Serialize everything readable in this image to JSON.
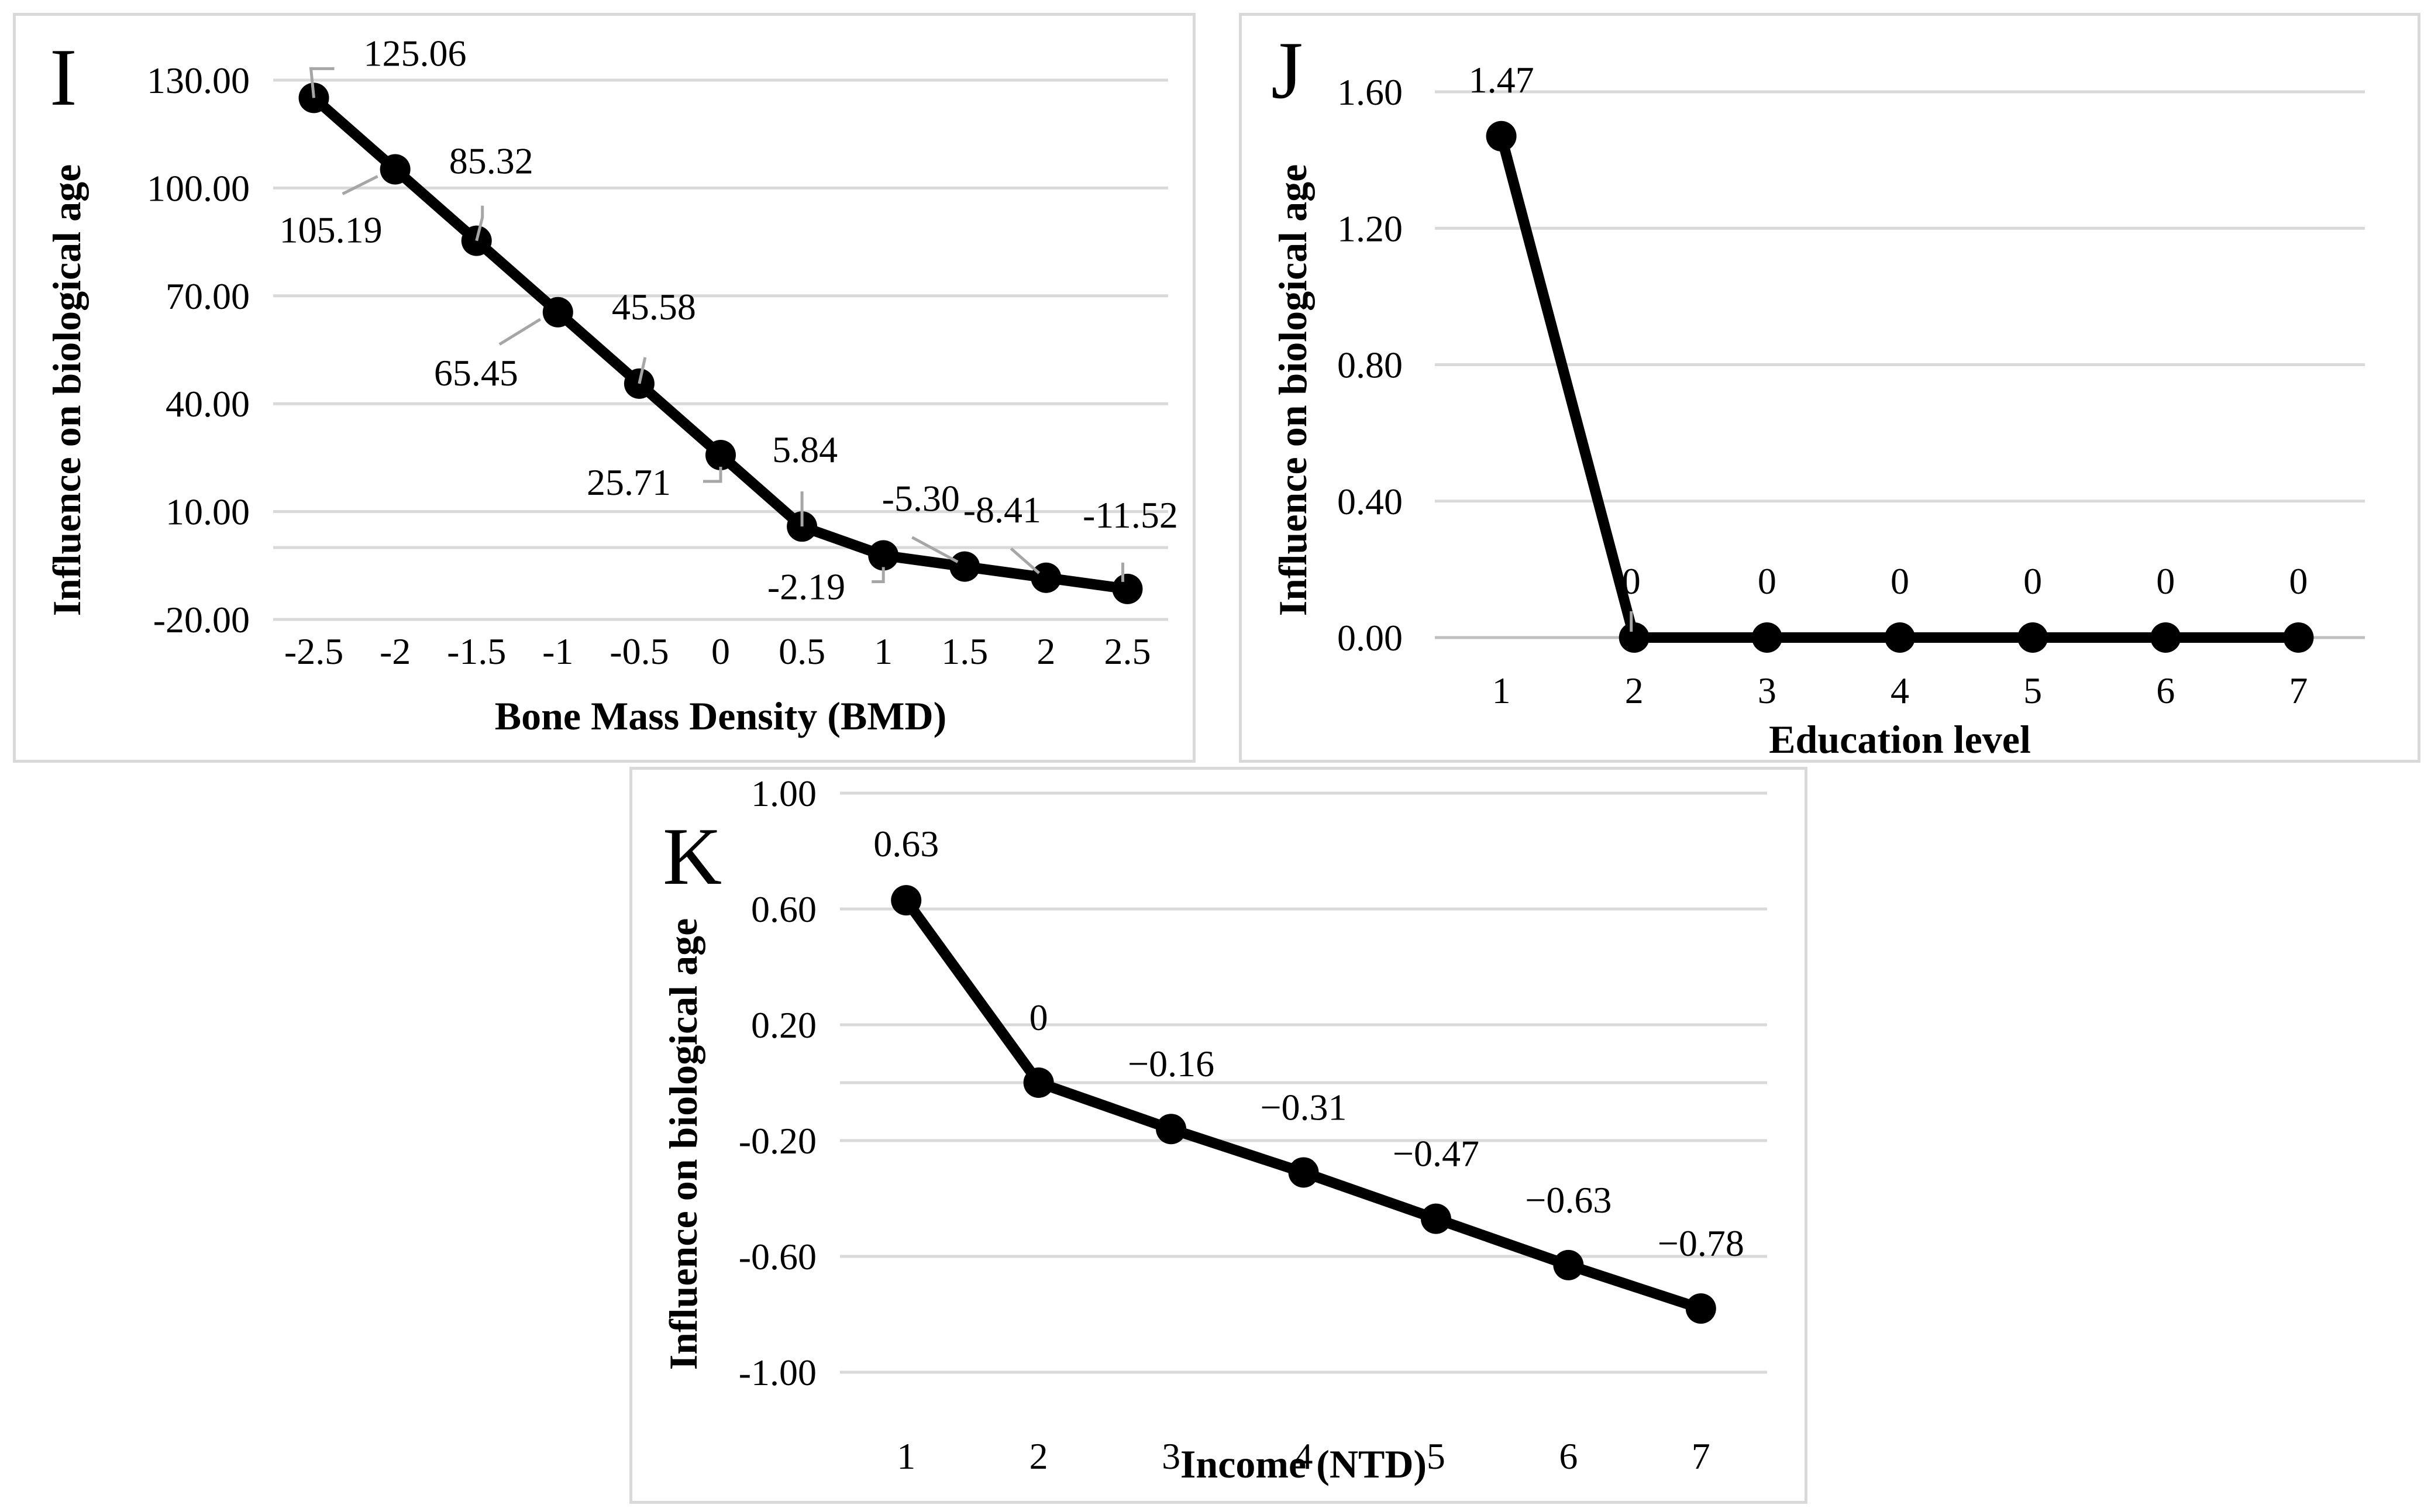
{
  "chart_data": [
    {
      "panel": "I",
      "type": "line",
      "xlabel": "Bone Mass Density (BMD)",
      "ylabel": "Influence on biological age",
      "categories": [
        "-2.5",
        "-2",
        "-1.5",
        "-1",
        "-0.5",
        "0",
        "0.5",
        "1",
        "1.5",
        "2",
        "2.5"
      ],
      "values": [
        125.06,
        105.19,
        85.32,
        65.45,
        45.58,
        25.71,
        5.84,
        -2.19,
        -5.3,
        -8.41,
        -11.52
      ],
      "data_labels": [
        "125.06",
        "105.19",
        "85.32",
        "65.45",
        "45.58",
        "25.71",
        "5.84",
        "-2.19",
        "-5.30",
        "-8.41",
        "-11.52"
      ],
      "yticks": [
        -20,
        10,
        40,
        70,
        100,
        130
      ],
      "ytick_labels": [
        "-20.00",
        "10.00",
        "40.00",
        "70.00",
        "100.00",
        "130.00"
      ],
      "ylim": [
        -20,
        130
      ],
      "grid": true
    },
    {
      "panel": "J",
      "type": "line",
      "xlabel": "Education level",
      "ylabel": "Influence on biological age",
      "categories": [
        "1",
        "2",
        "3",
        "4",
        "5",
        "6",
        "7"
      ],
      "values": [
        1.47,
        0,
        0,
        0,
        0,
        0,
        0
      ],
      "data_labels": [
        "1.47",
        "0",
        "0",
        "0",
        "0",
        "0",
        "0"
      ],
      "yticks": [
        0,
        0.4,
        0.8,
        1.2,
        1.6
      ],
      "ytick_labels": [
        "0.00",
        "0.40",
        "0.80",
        "1.20",
        "1.60"
      ],
      "ylim": [
        0,
        1.6
      ],
      "grid": true
    },
    {
      "panel": "K",
      "type": "line",
      "xlabel": "Income (NTD)",
      "ylabel": "Influence on biological age",
      "categories": [
        "1",
        "2",
        "3",
        "4",
        "5",
        "6",
        "7"
      ],
      "values": [
        0.63,
        0,
        -0.16,
        -0.31,
        -0.47,
        -0.63,
        -0.78
      ],
      "data_labels": [
        "0.63",
        "0",
        "−0.16",
        "−0.31",
        "−0.47",
        "−0.63",
        "−0.78"
      ],
      "yticks": [
        -1.0,
        -0.6,
        -0.2,
        0.2,
        0.6,
        1.0
      ],
      "ytick_labels": [
        "-1.00",
        "-0.60",
        "-0.20",
        "0.20",
        "0.60",
        "1.00"
      ],
      "ylim": [
        -1.0,
        1.0
      ],
      "grid": true
    }
  ]
}
